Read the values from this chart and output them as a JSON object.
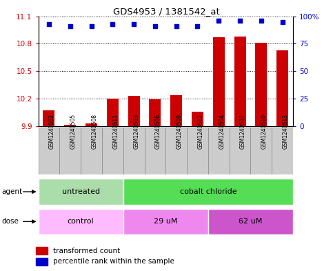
{
  "title": "GDS4953 / 1381542_at",
  "samples": [
    "GSM1240502",
    "GSM1240505",
    "GSM1240508",
    "GSM1240511",
    "GSM1240503",
    "GSM1240506",
    "GSM1240509",
    "GSM1240512",
    "GSM1240504",
    "GSM1240507",
    "GSM1240510",
    "GSM1240513"
  ],
  "bar_values": [
    10.07,
    9.91,
    9.93,
    10.2,
    10.23,
    10.19,
    10.24,
    10.06,
    10.87,
    10.88,
    10.81,
    10.73
  ],
  "dot_values": [
    93,
    91,
    91,
    93,
    93,
    91,
    91,
    91,
    96,
    96,
    96,
    95
  ],
  "ylim_left": [
    9.9,
    11.1
  ],
  "ylim_right": [
    0,
    100
  ],
  "yticks_left": [
    9.9,
    10.2,
    10.5,
    10.8,
    11.1
  ],
  "yticks_right": [
    0,
    25,
    50,
    75,
    100
  ],
  "ytick_labels_right": [
    "0",
    "25",
    "50",
    "75",
    "100%"
  ],
  "bar_color": "#cc0000",
  "dot_color": "#0000cc",
  "bar_base": 9.9,
  "agent_groups": [
    {
      "label": "untreated",
      "start": 0,
      "end": 4,
      "color": "#aaddaa"
    },
    {
      "label": "cobalt chloride",
      "start": 4,
      "end": 12,
      "color": "#55dd55"
    }
  ],
  "dose_groups": [
    {
      "label": "control",
      "start": 0,
      "end": 4,
      "color": "#ffbbff"
    },
    {
      "label": "29 uM",
      "start": 4,
      "end": 8,
      "color": "#ee88ee"
    },
    {
      "label": "62 uM",
      "start": 8,
      "end": 12,
      "color": "#cc55cc"
    }
  ],
  "legend_bar_label": "transformed count",
  "legend_dot_label": "percentile rank within the sample",
  "bar_color_left_tick": "#cc0000",
  "dot_color_right_tick": "#0000cc",
  "sample_box_color": "#cccccc",
  "sample_box_edge": "#888888"
}
